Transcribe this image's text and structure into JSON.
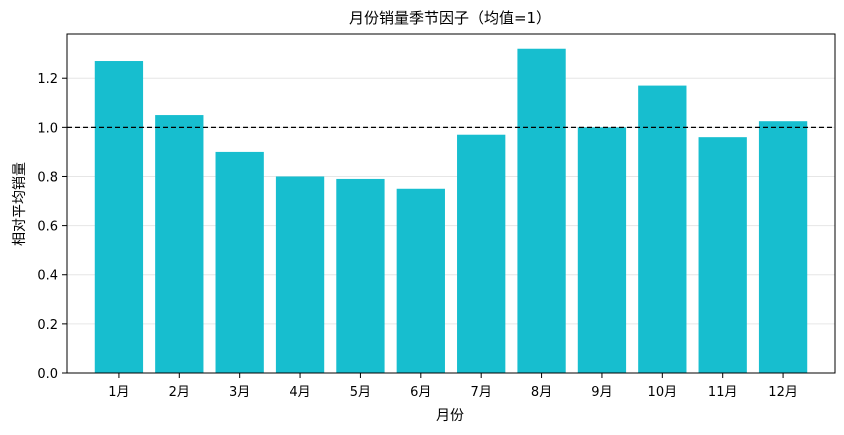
{
  "chart_data": {
    "type": "bar",
    "title": "月份销量季节因子（均值=1）",
    "xlabel": "月份",
    "ylabel": "相对平均销量",
    "categories": [
      "1月",
      "2月",
      "3月",
      "4月",
      "5月",
      "6月",
      "7月",
      "8月",
      "9月",
      "10月",
      "11月",
      "12月"
    ],
    "values": [
      1.27,
      1.05,
      0.9,
      0.8,
      0.79,
      0.75,
      0.97,
      1.32,
      1.0,
      1.17,
      0.96,
      1.025
    ],
    "ylim": [
      0,
      1.38
    ],
    "yticks": [
      "0.0",
      "0.2",
      "0.4",
      "0.6",
      "0.8",
      "1.0",
      "1.2"
    ],
    "reference_line": 1.0,
    "grid": "y",
    "bar_color": "#17becf",
    "reference_line_color": "#000000"
  }
}
